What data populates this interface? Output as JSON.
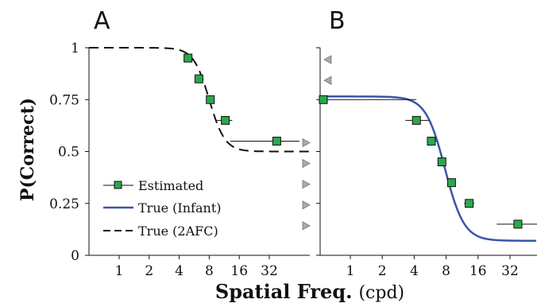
{
  "chart_data": [
    {
      "panel": "A",
      "type": "line",
      "x_scale": "log2",
      "x_ticks": [
        1,
        2,
        4,
        8,
        16,
        32
      ],
      "xlim": [
        0.5,
        64
      ],
      "ylim": [
        0,
        1
      ],
      "y_ticks": [
        0,
        0.25,
        0.5,
        0.75,
        1
      ],
      "y_tick_labels": [
        "0",
        "0.25",
        "0.5",
        "0.75",
        "1"
      ],
      "series": [
        {
          "name": "Estimated",
          "style": "markers",
          "color": "#2aa84a",
          "points": [
            {
              "x": 4.9,
              "y": 0.95,
              "xerr": [
                4.6,
                5.3
              ]
            },
            {
              "x": 6.3,
              "y": 0.85,
              "xerr": [
                6.0,
                6.8
              ]
            },
            {
              "x": 8.2,
              "y": 0.75,
              "xerr": [
                7.6,
                8.9
              ]
            },
            {
              "x": 11.6,
              "y": 0.65,
              "xerr": [
                9.5,
                13.6
              ]
            },
            {
              "x": 38,
              "y": 0.55,
              "xerr": [
                13,
                64
              ]
            }
          ]
        },
        {
          "name": "True (2AFC)",
          "style": "dashed",
          "color": "#111111",
          "curve": {
            "low": 0.5,
            "high": 1.0,
            "center": 8,
            "slope": 5.5
          }
        }
      ],
      "markers_right": [
        0.55,
        0.45,
        0.35,
        0.25,
        0.15
      ],
      "legend": [
        "Estimated",
        "True (Infant)",
        "True (2AFC)"
      ],
      "legend_placement": "bottom-left"
    },
    {
      "panel": "B",
      "type": "line",
      "x_scale": "log2",
      "x_ticks": [
        1,
        2,
        4,
        8,
        16,
        32
      ],
      "xlim": [
        0.5,
        64
      ],
      "ylim": [
        0,
        1
      ],
      "series": [
        {
          "name": "Estimated",
          "style": "markers",
          "color": "#2aa84a",
          "points": [
            {
              "x": 0.5,
              "y": 0.75,
              "xerr": [
                0.5,
                4.2
              ]
            },
            {
              "x": 4.2,
              "y": 0.65,
              "xerr": [
                3.3,
                5.5
              ]
            },
            {
              "x": 5.8,
              "y": 0.55,
              "xerr": [
                5.3,
                6.5
              ]
            },
            {
              "x": 7.3,
              "y": 0.45,
              "xerr": [
                6.8,
                7.9
              ]
            },
            {
              "x": 9.0,
              "y": 0.35,
              "xerr": [
                8.4,
                9.8
              ]
            },
            {
              "x": 13.2,
              "y": 0.25,
              "xerr": [
                11.8,
                14.8
              ]
            },
            {
              "x": 38,
              "y": 0.15,
              "xerr": [
                24,
                64
              ]
            }
          ]
        },
        {
          "name": "True (Infant)",
          "style": "solid",
          "color": "#3a56a6",
          "curve": {
            "low": 0.07,
            "high": 0.765,
            "center": 7.8,
            "slope": 4.8
          }
        }
      ],
      "markers_left": [
        0.95,
        0.85
      ]
    }
  ],
  "labels": {
    "panel_a": "A",
    "panel_b": "B",
    "ylabel": "P(Correct)",
    "xlabel_main": "Spatial Freq.",
    "xlabel_unit": "(cpd)",
    "legend_estimated": "Estimated",
    "legend_infant": "True (Infant)",
    "legend_2afc": "True (2AFC)"
  },
  "colors": {
    "marker_fill": "#2aa84a",
    "infant_curve": "#3a56a6",
    "afc_curve": "#111111",
    "triangle_fill": "#aaaaaa"
  }
}
